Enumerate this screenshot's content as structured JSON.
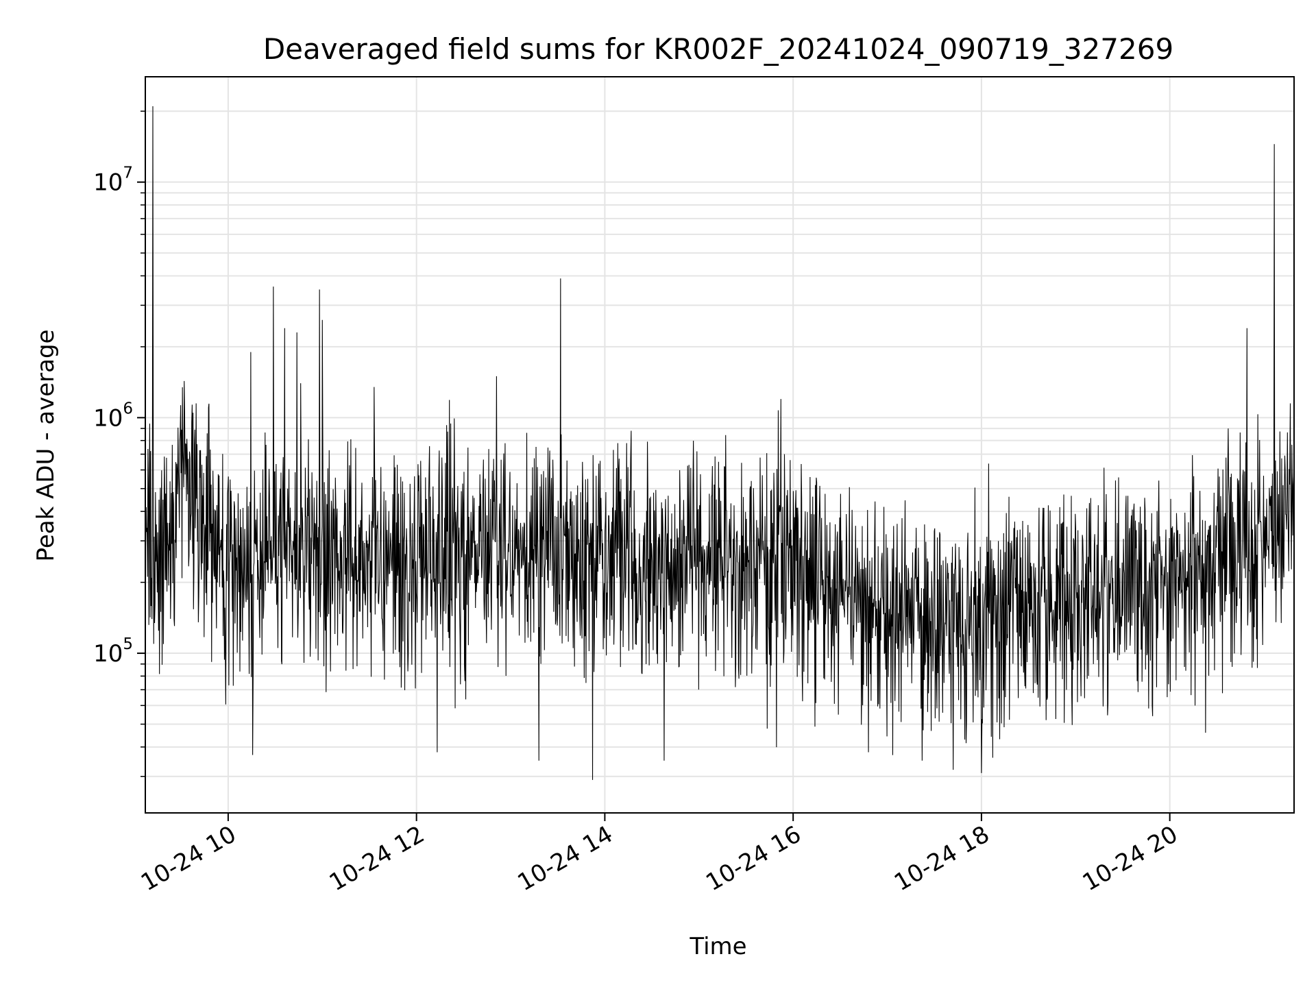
{
  "chart_data": {
    "type": "line",
    "title": "Deaveraged field sums for KR002F_20241024_090719_327269",
    "xlabel": "Time",
    "ylabel": "Peak ADU - average",
    "xaxis": {
      "kind": "time",
      "range_hours": [
        9.12,
        21.32
      ],
      "ticks": [
        {
          "hour": 10,
          "label": "10-24 10"
        },
        {
          "hour": 12,
          "label": "10-24 12"
        },
        {
          "hour": 14,
          "label": "10-24 14"
        },
        {
          "hour": 16,
          "label": "10-24 16"
        },
        {
          "hour": 18,
          "label": "10-24 18"
        },
        {
          "hour": 20,
          "label": "10-24 20"
        }
      ]
    },
    "yaxis": {
      "scale": "log",
      "range": [
        21000,
        28000000
      ],
      "ticks": [
        {
          "value": 100000,
          "base": "10",
          "exp": "5"
        },
        {
          "value": 1000000,
          "base": "10",
          "exp": "6"
        },
        {
          "value": 10000000,
          "base": "10",
          "exp": "7"
        }
      ]
    },
    "grid": true,
    "legend": "none",
    "line_color": "#000000",
    "baseline_profile": [
      [
        9.12,
        300000
      ],
      [
        9.3,
        280000
      ],
      [
        9.5,
        600000
      ],
      [
        9.7,
        380000
      ],
      [
        10.0,
        250000
      ],
      [
        10.5,
        280000
      ],
      [
        11.0,
        240000
      ],
      [
        11.5,
        230000
      ],
      [
        12.0,
        240000
      ],
      [
        12.5,
        260000
      ],
      [
        13.0,
        270000
      ],
      [
        13.5,
        270000
      ],
      [
        14.0,
        250000
      ],
      [
        14.5,
        250000
      ],
      [
        15.0,
        240000
      ],
      [
        15.5,
        240000
      ],
      [
        15.9,
        240000
      ],
      [
        16.0,
        210000
      ],
      [
        16.5,
        190000
      ],
      [
        17.0,
        150000
      ],
      [
        17.5,
        140000
      ],
      [
        18.0,
        120000
      ],
      [
        18.3,
        160000
      ],
      [
        18.5,
        180000
      ],
      [
        19.0,
        170000
      ],
      [
        19.5,
        170000
      ],
      [
        20.0,
        190000
      ],
      [
        20.5,
        230000
      ],
      [
        20.8,
        280000
      ],
      [
        21.1,
        320000
      ],
      [
        21.32,
        380000
      ]
    ],
    "peaks": [
      {
        "x": 9.2,
        "y": 21000000
      },
      {
        "x": 10.24,
        "y": 1900000
      },
      {
        "x": 10.48,
        "y": 3600000
      },
      {
        "x": 10.6,
        "y": 2400000
      },
      {
        "x": 10.73,
        "y": 2300000
      },
      {
        "x": 10.77,
        "y": 1400000
      },
      {
        "x": 10.97,
        "y": 3500000
      },
      {
        "x": 11.0,
        "y": 2600000
      },
      {
        "x": 11.55,
        "y": 1350000
      },
      {
        "x": 12.32,
        "y": 930000
      },
      {
        "x": 12.85,
        "y": 1500000
      },
      {
        "x": 13.53,
        "y": 3900000
      },
      {
        "x": 14.28,
        "y": 880000
      },
      {
        "x": 15.87,
        "y": 1200000
      },
      {
        "x": 20.82,
        "y": 2400000
      },
      {
        "x": 21.11,
        "y": 14500000
      },
      {
        "x": 21.28,
        "y": 1150000
      }
    ],
    "dips": [
      {
        "x": 10.26,
        "y": 37000
      },
      {
        "x": 12.22,
        "y": 38000
      },
      {
        "x": 13.3,
        "y": 35000
      },
      {
        "x": 13.87,
        "y": 29000
      },
      {
        "x": 14.63,
        "y": 35000
      },
      {
        "x": 16.8,
        "y": 38000
      },
      {
        "x": 17.37,
        "y": 35000
      },
      {
        "x": 17.7,
        "y": 32000
      },
      {
        "x": 18.0,
        "y": 31000
      },
      {
        "x": 18.12,
        "y": 36000
      },
      {
        "x": 20.38,
        "y": 46000
      }
    ]
  }
}
